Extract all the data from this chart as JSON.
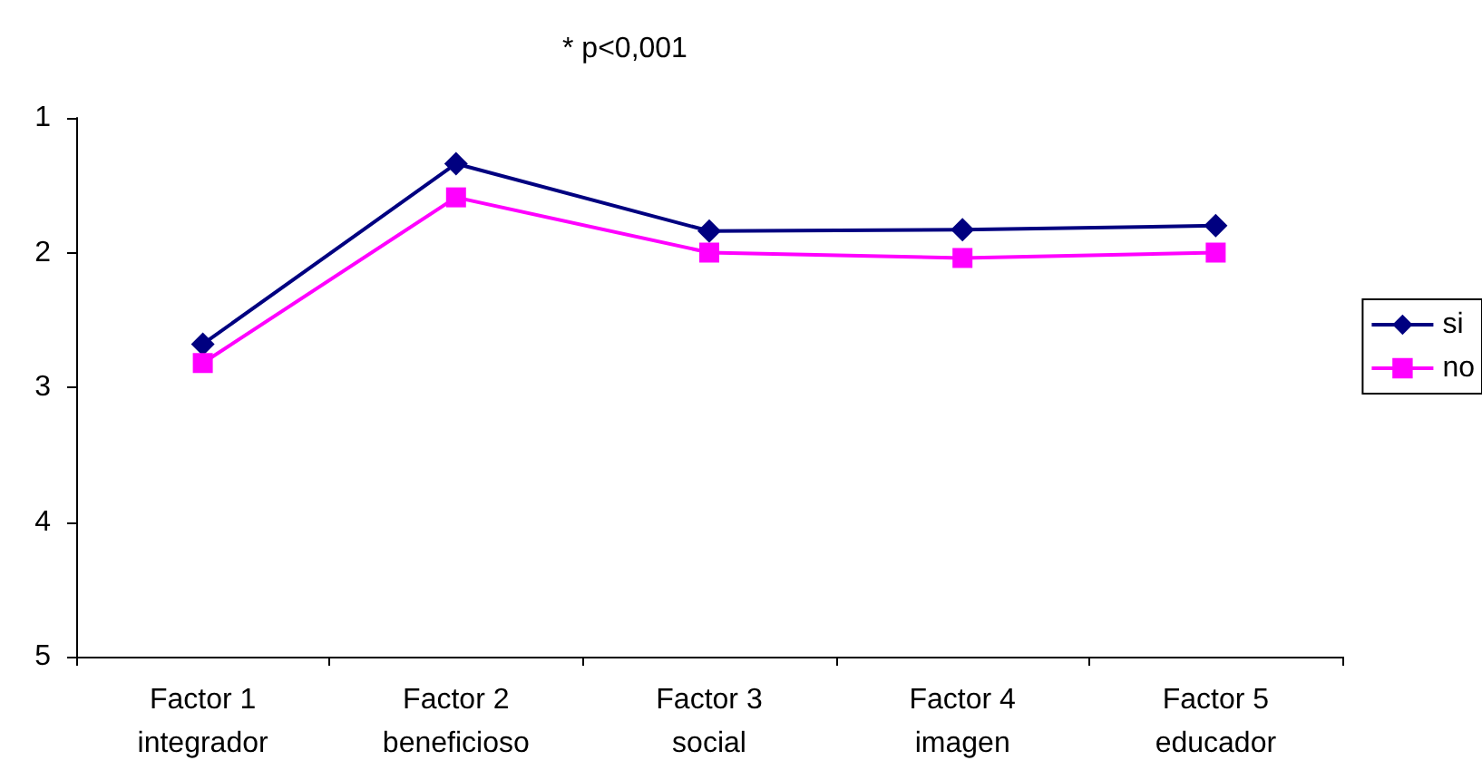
{
  "chart_data": {
    "type": "line",
    "title": "* p<0,001",
    "categories": [
      "Factor 1\nintegrador",
      "Factor 2\nbeneficioso",
      "Factor 3\nsocial",
      "Factor 4\nimagen",
      "Factor 5\neducador"
    ],
    "series": [
      {
        "name": "si",
        "color": "#000080",
        "marker": "diamond",
        "values": [
          2.68,
          1.34,
          1.84,
          1.83,
          1.8
        ]
      },
      {
        "name": "no",
        "color": "#ff00ff",
        "marker": "square",
        "values": [
          2.82,
          1.59,
          2.0,
          2.04,
          2.0
        ]
      }
    ],
    "ylim": [
      5,
      1
    ],
    "yticks": [
      1,
      2,
      3,
      4,
      5
    ],
    "grid": false,
    "legend": "right"
  }
}
